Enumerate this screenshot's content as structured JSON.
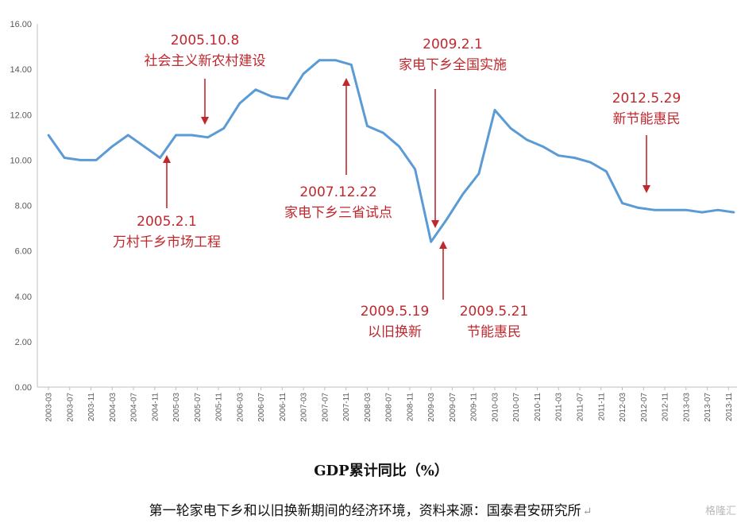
{
  "chart_data": {
    "type": "line",
    "title": "",
    "xlabel": "GDP累计同比（%）",
    "ylabel": "",
    "ylim": [
      0,
      16
    ],
    "yticks": [
      "0.00",
      "2.00",
      "4.00",
      "6.00",
      "8.00",
      "10.00",
      "12.00",
      "14.00",
      "16.00"
    ],
    "grid": false,
    "legend": "none",
    "line_color": "#5b9bd5",
    "annotation_color": "#c0282e",
    "x": [
      "2003-03",
      "2003-06",
      "2003-09",
      "2003-12",
      "2004-03",
      "2004-06",
      "2004-09",
      "2004-12",
      "2005-03",
      "2005-06",
      "2005-09",
      "2005-12",
      "2006-03",
      "2006-06",
      "2006-09",
      "2006-12",
      "2007-03",
      "2007-06",
      "2007-09",
      "2007-12",
      "2008-03",
      "2008-06",
      "2008-09",
      "2008-12",
      "2009-03",
      "2009-06",
      "2009-09",
      "2009-12",
      "2010-03",
      "2010-06",
      "2010-09",
      "2010-12",
      "2011-03",
      "2011-06",
      "2011-09",
      "2011-12",
      "2012-03",
      "2012-06",
      "2012-09",
      "2012-12",
      "2013-03",
      "2013-06",
      "2013-09",
      "2013-12"
    ],
    "xticks": [
      "2003-03",
      "2003-07",
      "2003-11",
      "2004-03",
      "2004-07",
      "2004-11",
      "2005-03",
      "2005-07",
      "2005-11",
      "2006-03",
      "2006-07",
      "2006-11",
      "2007-03",
      "2007-07",
      "2007-11",
      "2008-03",
      "2008-07",
      "2008-11",
      "2009-03",
      "2009-07",
      "2009-11",
      "2010-03",
      "2010-07",
      "2010-11",
      "2011-03",
      "2011-07",
      "2011-11",
      "2012-03",
      "2012-07",
      "2012-11",
      "2013-03",
      "2013-07",
      "2013-11"
    ],
    "series": [
      {
        "name": "",
        "values": [
          11.1,
          10.1,
          10.0,
          10.0,
          10.6,
          11.1,
          10.6,
          10.1,
          11.1,
          11.1,
          11.0,
          11.4,
          12.5,
          13.1,
          12.8,
          12.7,
          13.8,
          14.4,
          14.4,
          14.2,
          11.5,
          11.2,
          10.6,
          9.6,
          6.4,
          7.4,
          8.5,
          9.4,
          12.2,
          11.4,
          10.9,
          10.6,
          10.2,
          10.1,
          9.9,
          9.5,
          8.1,
          7.9,
          7.8,
          7.8,
          7.8,
          7.7,
          7.8,
          7.7
        ]
      }
    ],
    "annotations": [
      {
        "date": "2005.10.8",
        "text": "社会主义新农村建设"
      },
      {
        "date": "2005.2.1",
        "text": "万村千乡市场工程"
      },
      {
        "date": "2007.12.22",
        "text": "家电下乡三省试点"
      },
      {
        "date": "2009.2.1",
        "text": "家电下乡全国实施"
      },
      {
        "date": "2009.5.19",
        "text": "以旧换新"
      },
      {
        "date": "2009.5.21",
        "text": "节能惠民"
      },
      {
        "date": "2012.5.29",
        "text": "新节能惠民"
      }
    ]
  },
  "caption": "第一轮家电下乡和以旧换新期间的经济环境，资料来源：国泰君安研究所",
  "caption_mark": "↵",
  "watermark": "格隆汇"
}
